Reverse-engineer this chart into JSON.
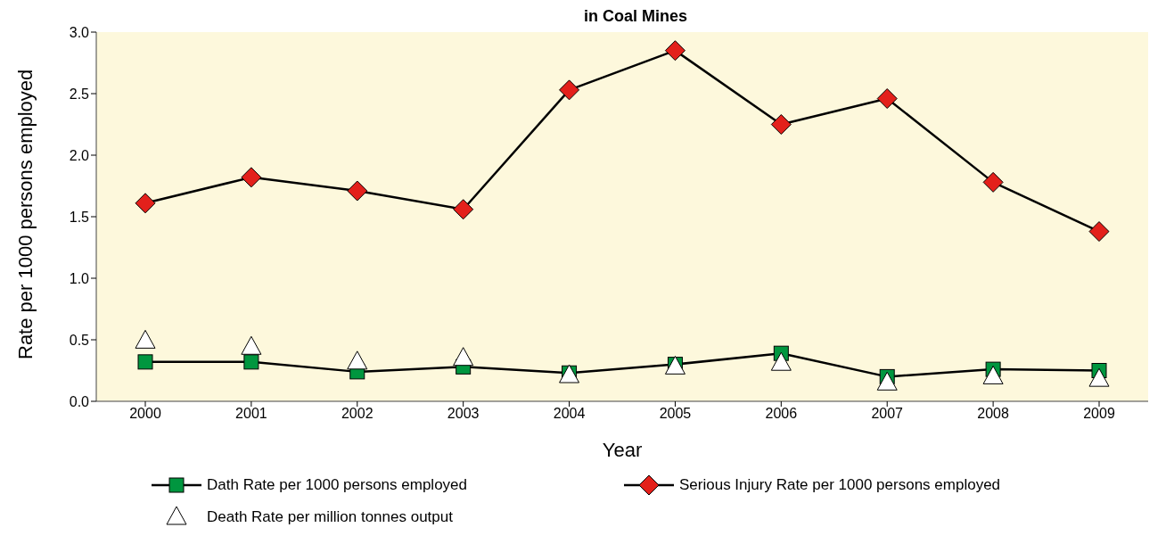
{
  "chart_data": {
    "type": "line",
    "title": "in Coal Mines",
    "xlabel": "Year",
    "ylabel": "Rate per 1000 persons employed",
    "categories": [
      "2000",
      "2001",
      "2002",
      "2003",
      "2004",
      "2005",
      "2006",
      "2007",
      "2008",
      "2009"
    ],
    "series": [
      {
        "name": "Dath Rate per 1000 persons employed",
        "type": "line",
        "marker": "square",
        "color": "#00963f",
        "values": [
          0.32,
          0.32,
          0.24,
          0.28,
          0.23,
          0.3,
          0.39,
          0.2,
          0.26,
          0.25
        ]
      },
      {
        "name": "Serious Injury Rate per 1000 persons employed",
        "type": "line",
        "marker": "diamond",
        "color": "#e3201b",
        "values": [
          1.61,
          1.82,
          1.71,
          1.56,
          2.53,
          2.85,
          2.25,
          2.46,
          1.78,
          1.38
        ]
      },
      {
        "name": "Death Rate per million tonnes output",
        "type": "scatter",
        "marker": "triangle",
        "color": "#ffffff",
        "values": [
          0.49,
          0.44,
          0.32,
          0.35,
          0.21,
          0.28,
          0.31,
          0.15,
          0.2,
          0.18
        ]
      }
    ],
    "ylim": [
      0,
      3.0
    ],
    "yticks": [
      {
        "value": 0,
        "label": "0.0"
      },
      {
        "value": 0.5,
        "label": "0.5"
      },
      {
        "value": 1,
        "label": "1.0"
      },
      {
        "value": 1.5,
        "label": "1.5"
      },
      {
        "value": 2,
        "label": "2.0"
      },
      {
        "value": 2.5,
        "label": "2.5"
      },
      {
        "value": 3,
        "label": "3.0"
      }
    ],
    "grid": false,
    "legend": "bottom"
  }
}
